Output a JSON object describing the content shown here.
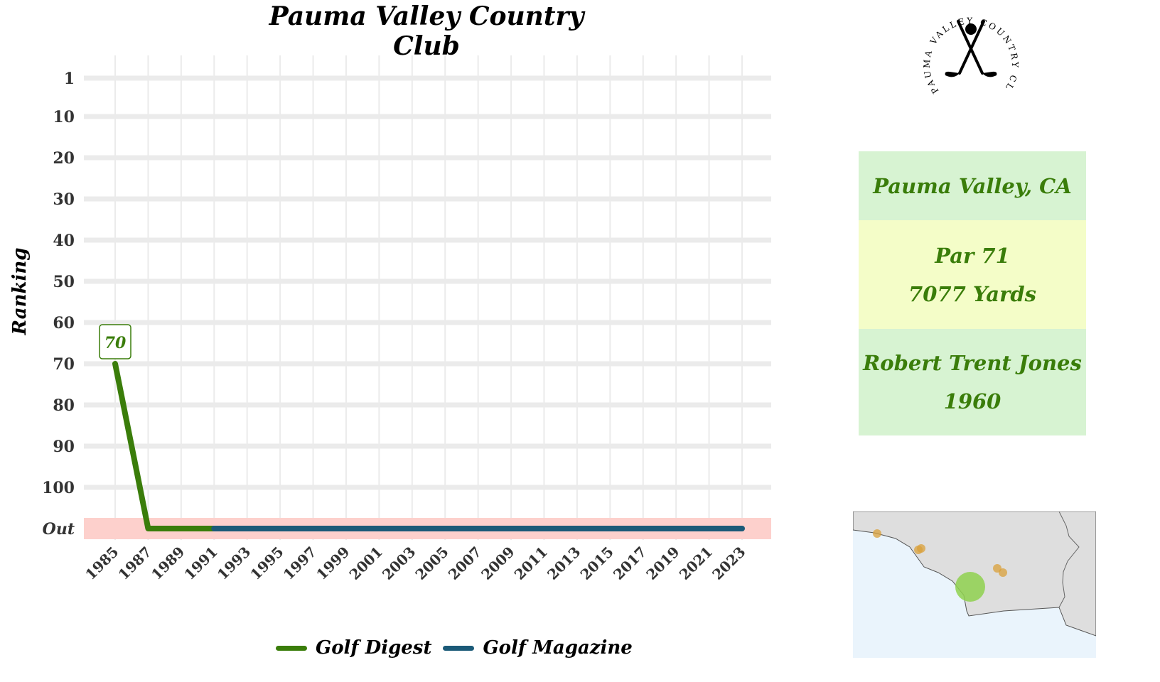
{
  "title": "Pauma Valley Country Club",
  "info": {
    "location": "Pauma Valley, CA",
    "par": "Par 71",
    "yards": "7077 Yards",
    "architect": "Robert Trent Jones",
    "year": "1960"
  },
  "logo": {
    "text": "PAUMA VALLEY COUNTRY CLUB",
    "icon": "crossed-golf-clubs-icon"
  },
  "colors": {
    "golf_digest": "#3a7d0a",
    "golf_magazine": "#1b5a78",
    "out_band": "#fdd0cc",
    "info_green": "#d7f3d2",
    "info_yellow": "#f4fdc8",
    "map_land": "#dedede",
    "map_water": "#eaf4fc",
    "map_marker_main": "#8fd14f",
    "map_marker_other": "#d9a03a"
  },
  "chart_data": {
    "type": "line",
    "title": "Pauma Valley Country Club",
    "xlabel": "",
    "ylabel": "Ranking",
    "x_ticks": [
      1985,
      1987,
      1989,
      1991,
      1993,
      1995,
      1997,
      1999,
      2001,
      2003,
      2005,
      2007,
      2009,
      2011,
      2013,
      2015,
      2017,
      2019,
      2021,
      2023
    ],
    "x_range": [
      1985,
      2023
    ],
    "y_ticks": [
      "1",
      "10",
      "20",
      "30",
      "40",
      "50",
      "60",
      "70",
      "80",
      "90",
      "100",
      "Out"
    ],
    "y_reversed": true,
    "grid": true,
    "legend_position": "bottom",
    "out_band": true,
    "series": [
      {
        "name": "Golf Digest",
        "color": "#3a7d0a",
        "points": [
          [
            1985,
            70
          ],
          [
            1987,
            "Out"
          ],
          [
            1991,
            "Out"
          ]
        ]
      },
      {
        "name": "Golf Magazine",
        "color": "#1b5a78",
        "points": [
          [
            1991,
            "Out"
          ],
          [
            2023,
            "Out"
          ]
        ]
      }
    ],
    "annotations": [
      {
        "x": 1985,
        "y": 70,
        "text": "70",
        "series": "Golf Digest"
      }
    ]
  }
}
